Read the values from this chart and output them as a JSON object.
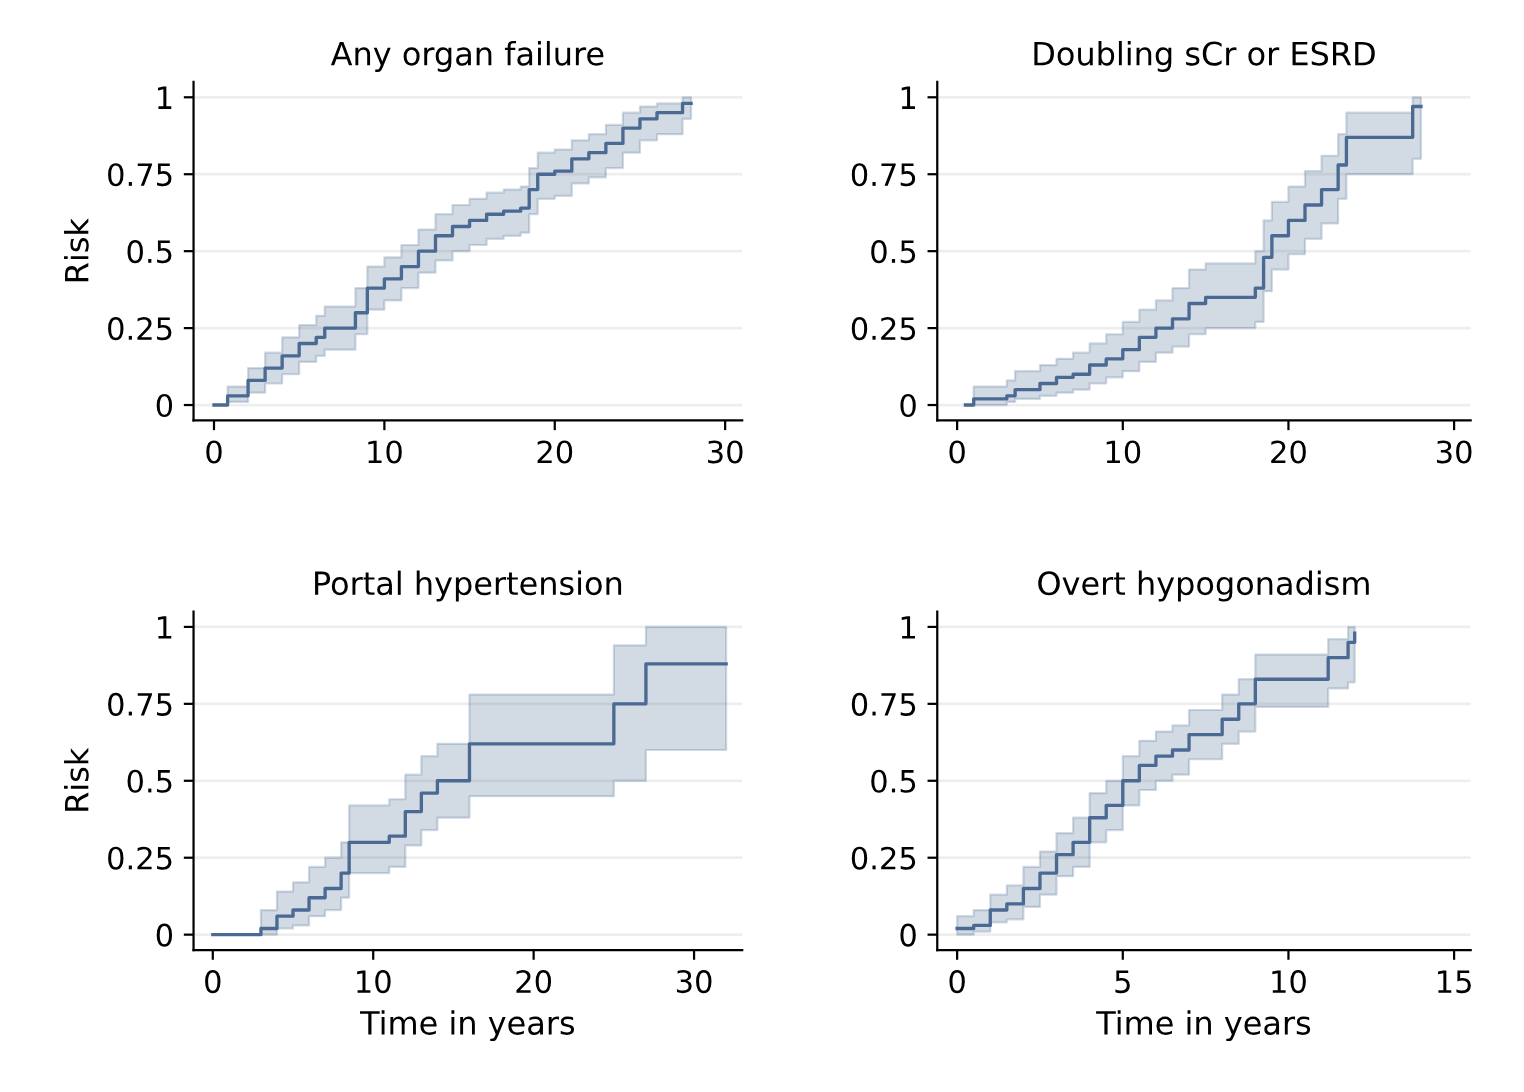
{
  "chart_data": [
    {
      "type": "step",
      "title": "Any organ failure",
      "ylabel": "Risk",
      "xlim": [
        -1.2,
        31
      ],
      "ylim": [
        -0.05,
        1.05
      ],
      "xticks": [
        0,
        10,
        20,
        30
      ],
      "yticks": [
        0,
        0.25,
        0.5,
        0.75,
        1
      ],
      "grid": "y",
      "series": [
        {
          "color": "#4a6a94",
          "x": [
            0,
            0.8,
            2,
            3,
            4,
            5,
            6,
            6.5,
            8,
            8.3,
            9,
            10,
            11,
            12,
            13,
            14,
            15,
            16,
            17,
            18,
            18.5,
            19,
            20,
            21,
            22,
            23,
            24,
            25,
            26,
            27,
            27.5,
            28
          ],
          "values": [
            0,
            0.03,
            0.08,
            0.12,
            0.16,
            0.2,
            0.22,
            0.25,
            0.25,
            0.3,
            0.38,
            0.41,
            0.45,
            0.5,
            0.55,
            0.58,
            0.6,
            0.62,
            0.63,
            0.64,
            0.7,
            0.75,
            0.76,
            0.8,
            0.82,
            0.85,
            0.9,
            0.93,
            0.95,
            0.95,
            0.98,
            0.98
          ],
          "lower": [
            0,
            0.01,
            0.04,
            0.07,
            0.1,
            0.14,
            0.16,
            0.18,
            0.18,
            0.23,
            0.31,
            0.34,
            0.38,
            0.43,
            0.47,
            0.5,
            0.52,
            0.54,
            0.55,
            0.56,
            0.62,
            0.67,
            0.68,
            0.72,
            0.74,
            0.77,
            0.82,
            0.86,
            0.88,
            0.88,
            0.93,
            0.93
          ],
          "upper": [
            0,
            0.06,
            0.12,
            0.17,
            0.22,
            0.26,
            0.29,
            0.32,
            0.32,
            0.38,
            0.45,
            0.48,
            0.52,
            0.57,
            0.62,
            0.65,
            0.67,
            0.69,
            0.7,
            0.71,
            0.77,
            0.82,
            0.83,
            0.86,
            0.88,
            0.91,
            0.95,
            0.97,
            0.98,
            0.98,
            1,
            1
          ]
        }
      ]
    },
    {
      "type": "step",
      "title": "Doubling sCr or ESRD",
      "xlim": [
        -1.2,
        31
      ],
      "ylim": [
        -0.05,
        1.05
      ],
      "xticks": [
        0,
        10,
        20,
        30
      ],
      "yticks": [
        0,
        0.25,
        0.5,
        0.75,
        1
      ],
      "grid": "y",
      "series": [
        {
          "color": "#4a6a94",
          "x": [
            0.5,
            1,
            3,
            3.5,
            5,
            6,
            7,
            8,
            9,
            10,
            11,
            12,
            13,
            14,
            15,
            17,
            18,
            18.5,
            19,
            20,
            21,
            22,
            23,
            23.5,
            27,
            27.5,
            28
          ],
          "values": [
            0,
            0.02,
            0.03,
            0.05,
            0.07,
            0.09,
            0.1,
            0.13,
            0.15,
            0.18,
            0.22,
            0.25,
            0.28,
            0.33,
            0.35,
            0.35,
            0.38,
            0.48,
            0.55,
            0.6,
            0.65,
            0.7,
            0.78,
            0.87,
            0.87,
            0.97,
            0.97
          ],
          "lower": [
            0,
            0,
            0.01,
            0.02,
            0.03,
            0.04,
            0.05,
            0.07,
            0.09,
            0.11,
            0.14,
            0.17,
            0.19,
            0.23,
            0.25,
            0.25,
            0.27,
            0.37,
            0.44,
            0.49,
            0.54,
            0.59,
            0.67,
            0.75,
            0.75,
            0.8,
            0.8
          ],
          "upper": [
            0,
            0.06,
            0.08,
            0.11,
            0.13,
            0.15,
            0.17,
            0.2,
            0.23,
            0.27,
            0.31,
            0.34,
            0.38,
            0.44,
            0.46,
            0.46,
            0.5,
            0.6,
            0.66,
            0.71,
            0.76,
            0.81,
            0.88,
            0.95,
            0.95,
            1,
            1
          ]
        }
      ]
    },
    {
      "type": "step",
      "title": "Portal hypertension",
      "ylabel": "Risk",
      "xlabel": "Time in years",
      "xlim": [
        -1.2,
        33
      ],
      "ylim": [
        -0.05,
        1.05
      ],
      "xticks": [
        0,
        10,
        20,
        30
      ],
      "yticks": [
        0,
        0.25,
        0.5,
        0.75,
        1
      ],
      "grid": "y",
      "series": [
        {
          "color": "#4a6a94",
          "x": [
            0,
            2.5,
            3,
            4,
            5,
            6,
            7,
            8,
            8.5,
            10,
            11,
            12,
            13,
            14,
            15,
            16,
            24.5,
            25,
            27,
            32
          ],
          "values": [
            0,
            0,
            0.02,
            0.06,
            0.08,
            0.12,
            0.15,
            0.2,
            0.3,
            0.3,
            0.32,
            0.4,
            0.46,
            0.5,
            0.5,
            0.62,
            0.62,
            0.75,
            0.88,
            0.88
          ],
          "lower": [
            0,
            0,
            0,
            0.02,
            0.03,
            0.06,
            0.08,
            0.12,
            0.2,
            0.2,
            0.22,
            0.29,
            0.34,
            0.38,
            0.38,
            0.45,
            0.45,
            0.5,
            0.6,
            0.6
          ],
          "upper": [
            0,
            0,
            0.08,
            0.14,
            0.17,
            0.22,
            0.25,
            0.3,
            0.42,
            0.42,
            0.44,
            0.52,
            0.58,
            0.62,
            0.62,
            0.78,
            0.78,
            0.94,
            1,
            1
          ]
        }
      ]
    },
    {
      "type": "step",
      "title": "Overt hypogonadism",
      "xlabel": "Time in years",
      "xlim": [
        -0.6,
        15.5
      ],
      "ylim": [
        -0.05,
        1.05
      ],
      "xticks": [
        0,
        5,
        10,
        15
      ],
      "yticks": [
        0,
        0.25,
        0.5,
        0.75,
        1
      ],
      "grid": "y",
      "series": [
        {
          "color": "#4a6a94",
          "x": [
            0,
            0.5,
            1,
            1.5,
            2,
            2.5,
            3,
            3.5,
            4,
            4.5,
            5,
            5.5,
            6,
            6.5,
            7,
            8,
            8.5,
            9,
            11,
            11.2,
            11.8,
            12
          ],
          "values": [
            0.02,
            0.03,
            0.08,
            0.1,
            0.15,
            0.2,
            0.26,
            0.3,
            0.38,
            0.42,
            0.5,
            0.55,
            0.58,
            0.6,
            0.65,
            0.7,
            0.75,
            0.83,
            0.83,
            0.9,
            0.95,
            0.98
          ],
          "lower": [
            0,
            0.01,
            0.04,
            0.05,
            0.09,
            0.13,
            0.19,
            0.22,
            0.3,
            0.34,
            0.42,
            0.47,
            0.5,
            0.52,
            0.57,
            0.62,
            0.66,
            0.74,
            0.74,
            0.8,
            0.82,
            0.82
          ],
          "upper": [
            0.06,
            0.08,
            0.13,
            0.16,
            0.22,
            0.27,
            0.33,
            0.38,
            0.46,
            0.5,
            0.58,
            0.63,
            0.66,
            0.68,
            0.73,
            0.78,
            0.83,
            0.91,
            0.91,
            0.96,
            1,
            1
          ]
        }
      ]
    }
  ]
}
